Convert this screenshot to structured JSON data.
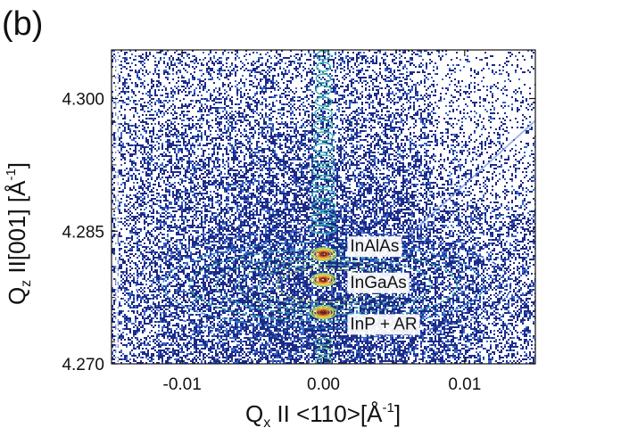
{
  "panel_label": "(b)",
  "colors": {
    "background_noise": "#1c2a86",
    "noise_light": "#3a66c8",
    "contour_levels": [
      "#2a4fb0",
      "#2f8fd0",
      "#3cb6b0",
      "#5cc89a",
      "#9bd36a",
      "#e6d24a",
      "#f0a030",
      "#c8501a",
      "#7a2410"
    ]
  },
  "chart_data": {
    "type": "heatmap",
    "title": "",
    "xlabel_main": "Q",
    "xlabel_sub": "x",
    "xlabel_rest": " II <110>[Å",
    "xlabel_sup": "-1",
    "xlabel_end": "]",
    "ylabel_main": "Q",
    "ylabel_sub": "z",
    "ylabel_rest": " II[001] [Å",
    "ylabel_sup": "-1",
    "ylabel_end": "]",
    "xlim": [
      -0.015,
      0.015
    ],
    "ylim": [
      4.27,
      4.3055
    ],
    "x_ticks": [
      {
        "value": -0.01,
        "label": "-0.01"
      },
      {
        "value": 0.0,
        "label": "0.00"
      },
      {
        "value": 0.01,
        "label": "0.01"
      }
    ],
    "y_ticks": [
      {
        "value": 4.3,
        "label": "4.300"
      },
      {
        "value": 4.285,
        "label": "4.285"
      },
      {
        "value": 4.27,
        "label": "4.270"
      }
    ],
    "peaks": [
      {
        "name": "InAlAs",
        "x": 0.0,
        "y": 4.2824
      },
      {
        "name": "InGaAs",
        "x": 0.0,
        "y": 4.2795
      },
      {
        "name": "InP + AR",
        "x": 0.0,
        "y": 4.2758
      }
    ],
    "annotations": [
      {
        "text": "InAlAs",
        "x": 0.0017,
        "y": 4.2834
      },
      {
        "text": "InGaAs",
        "x": 0.0017,
        "y": 4.2793
      },
      {
        "text": "InP + AR",
        "x": 0.0017,
        "y": 4.2746
      }
    ]
  }
}
